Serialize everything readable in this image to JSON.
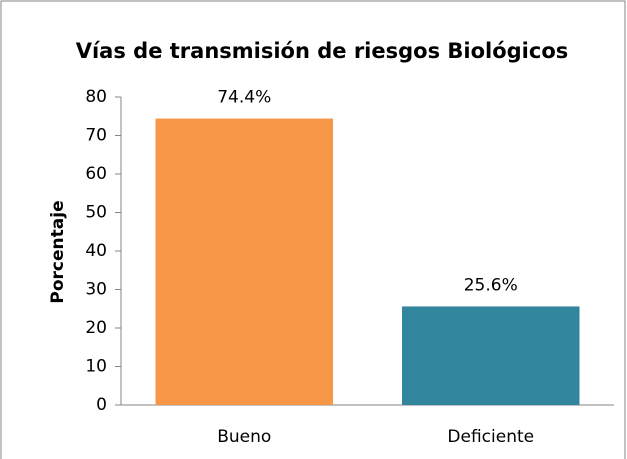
{
  "chart_data": {
    "type": "bar",
    "title": "Vías de transmisión de riesgos Biológicos",
    "y_label": "Porcentaje",
    "categories": [
      "Bueno",
      "Deficiente"
    ],
    "values": [
      74.4,
      25.6
    ],
    "value_labels": [
      "74.4%",
      "25.6%"
    ],
    "colors": [
      "#F79646",
      "#31859C"
    ],
    "ylim": [
      0,
      80
    ],
    "yticks": [
      0,
      10,
      20,
      30,
      40,
      50,
      60,
      70,
      80
    ],
    "grid": false
  }
}
